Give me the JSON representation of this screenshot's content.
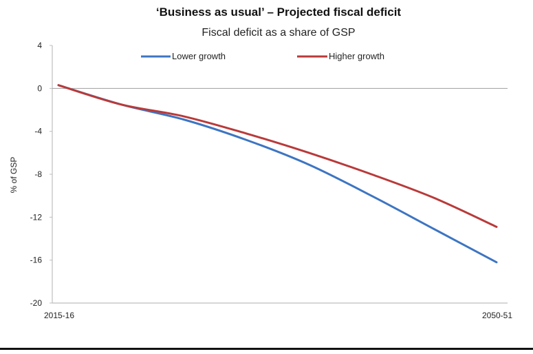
{
  "chart_data": {
    "type": "line",
    "title": "‘Business as usual’ – Projected fiscal deficit",
    "subtitle": "Fiscal deficit as a share of GSP",
    "xlabel": "",
    "ylabel": "% of GSP",
    "x_tick_labels": [
      "2015-16",
      "2050-51"
    ],
    "y_ticks": [
      4,
      0,
      -4,
      -8,
      -12,
      -16,
      -20
    ],
    "ylim": [
      -20,
      4
    ],
    "grid": false,
    "legend_position": "top",
    "x": [
      0,
      5,
      10,
      15,
      20,
      25,
      30,
      35
    ],
    "series": [
      {
        "name": "Lower growth",
        "color": "#3d75c2",
        "values": [
          0.3,
          -1.5,
          -2.9,
          -4.8,
          -7.1,
          -10.0,
          -13.1,
          -16.2
        ]
      },
      {
        "name": "Higher growth",
        "color": "#b93a3a",
        "values": [
          0.3,
          -1.5,
          -2.6,
          -4.2,
          -6.0,
          -8.0,
          -10.2,
          -12.9
        ]
      }
    ]
  }
}
